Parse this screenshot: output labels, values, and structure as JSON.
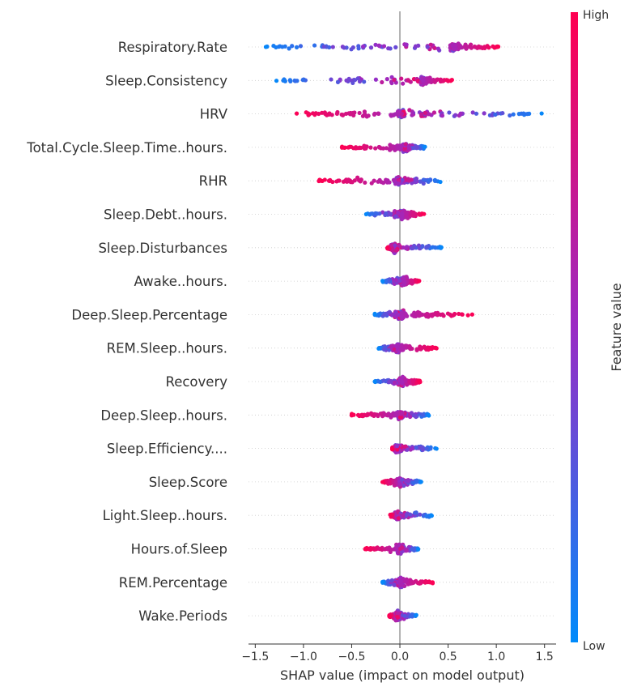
{
  "chart_data": {
    "type": "scatter",
    "xlabel": "SHAP value (impact on model output)",
    "xlim": [
      -1.57,
      1.62
    ],
    "xticks": [
      {
        "value": -1.5,
        "label": "−1.5"
      },
      {
        "value": -1.0,
        "label": "−1.0"
      },
      {
        "value": -0.5,
        "label": "−0.5"
      },
      {
        "value": 0.0,
        "label": "0.0"
      },
      {
        "value": 0.5,
        "label": "0.5"
      },
      {
        "value": 1.0,
        "label": "1.0"
      },
      {
        "value": 1.5,
        "label": "1.5"
      }
    ],
    "colorbar": {
      "label": "Feature value",
      "high": "High",
      "low": "Low",
      "low_color": "#008bfb",
      "mid_color": "#9a2bc4",
      "high_color": "#ff0051"
    },
    "features": [
      {
        "name": "Respiratory.Rate",
        "min": -1.39,
        "max": 1.02,
        "center": 0.55,
        "low_side": "left",
        "high_extreme": 0.9
      },
      {
        "name": "Sleep.Consistency",
        "min": -1.28,
        "max": 0.54,
        "center": 0.24,
        "low_side": "left",
        "high_extreme": 0.5
      },
      {
        "name": "HRV",
        "min": -1.07,
        "max": 1.47,
        "center": 0.02,
        "low_side": "right",
        "high_extreme": -0.75
      },
      {
        "name": "Total.Cycle.Sleep.Time..hours.",
        "min": -0.6,
        "max": 0.26,
        "center": 0.05,
        "low_side": "right",
        "high_extreme": -0.55
      },
      {
        "name": "RHR",
        "min": -0.84,
        "max": 0.42,
        "center": -0.02,
        "low_side": "right",
        "high_extreme": -0.5
      },
      {
        "name": "Sleep.Debt..hours.",
        "min": -0.35,
        "max": 0.25,
        "center": 0.02,
        "low_side": "left",
        "high_extreme": 0.22
      },
      {
        "name": "Sleep.Disturbances",
        "min": -0.13,
        "max": 0.43,
        "center": -0.06,
        "low_side": "right",
        "high_extreme": -0.1
      },
      {
        "name": "Awake..hours.",
        "min": -0.18,
        "max": 0.2,
        "center": 0.04,
        "low_side": "left",
        "high_extreme": 0.18
      },
      {
        "name": "Deep.Sleep.Percentage",
        "min": -0.26,
        "max": 0.75,
        "center": 0.0,
        "low_side": "left",
        "high_extreme": 0.7
      },
      {
        "name": "REM.Sleep..hours.",
        "min": -0.22,
        "max": 0.38,
        "center": -0.03,
        "low_side": "left",
        "high_extreme": 0.3
      },
      {
        "name": "Recovery",
        "min": -0.26,
        "max": 0.21,
        "center": 0.02,
        "low_side": "left",
        "high_extreme": 0.15
      },
      {
        "name": "Deep.Sleep..hours.",
        "min": -0.5,
        "max": 0.3,
        "center": 0.0,
        "low_side": "right",
        "high_extreme": -0.45
      },
      {
        "name": "Sleep.Efficiency....",
        "min": -0.08,
        "max": 0.38,
        "center": -0.03,
        "low_side": "right",
        "high_extreme": -0.05
      },
      {
        "name": "Sleep.Score",
        "min": -0.18,
        "max": 0.22,
        "center": 0.0,
        "low_side": "right",
        "high_extreme": -0.15
      },
      {
        "name": "Light.Sleep..hours.",
        "min": -0.1,
        "max": 0.33,
        "center": -0.02,
        "low_side": "right",
        "high_extreme": -0.08
      },
      {
        "name": "Hours.of.Sleep",
        "min": -0.36,
        "max": 0.19,
        "center": 0.0,
        "low_side": "right",
        "high_extreme": -0.3
      },
      {
        "name": "REM.Percentage",
        "min": -0.18,
        "max": 0.34,
        "center": 0.0,
        "low_side": "left",
        "high_extreme": 0.3
      },
      {
        "name": "Wake.Periods",
        "min": -0.11,
        "max": 0.17,
        "center": -0.03,
        "low_side": "right",
        "high_extreme": -0.1
      }
    ]
  }
}
